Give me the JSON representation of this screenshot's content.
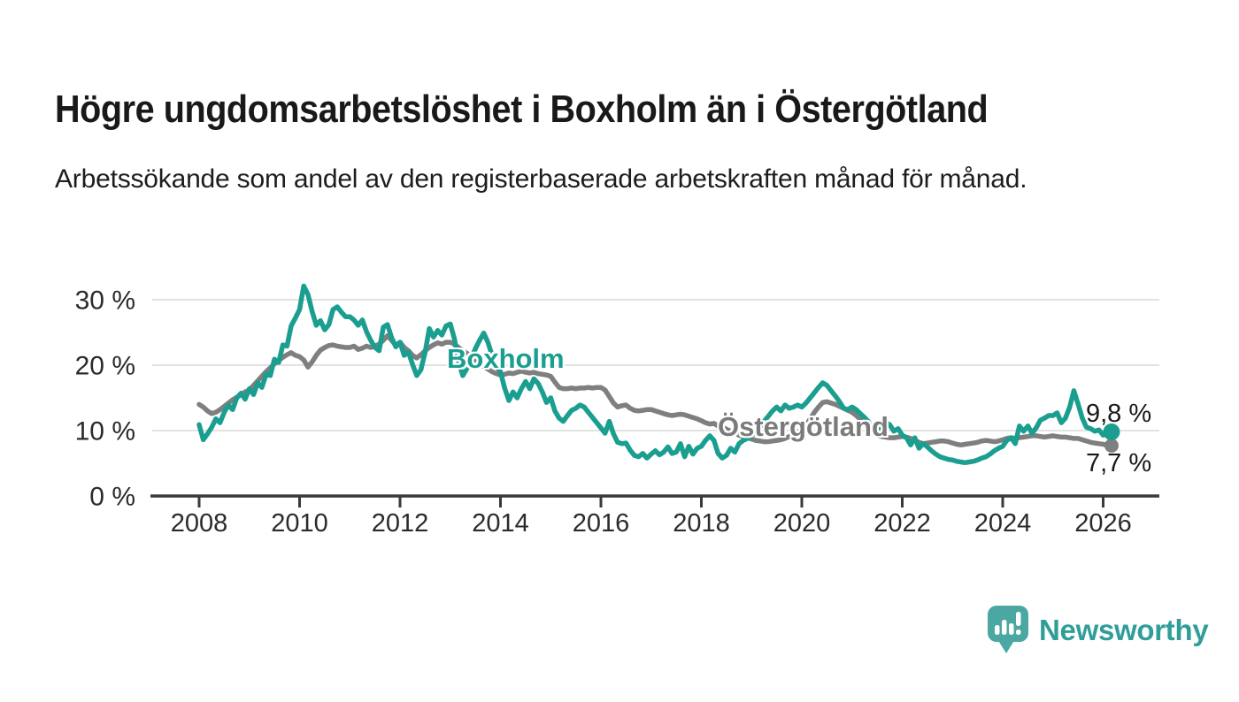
{
  "header": {
    "title": "Högre ungdomsarbetslöshet i Boxholm än i Östergötland",
    "subtitle": "Arbetssökande som andel av den registerbaserade arbetskraften månad för månad."
  },
  "chart_data": {
    "type": "line",
    "frequency": "monthly",
    "x_start": "2008-01",
    "x_end": "2026-03",
    "unit": "%",
    "grid": "horizontal",
    "legend_position": "inline-labels",
    "y_axis": {
      "range": [
        0,
        33
      ],
      "ticks": [
        {
          "value": 0,
          "label": "0 %"
        },
        {
          "value": 10,
          "label": "10 %"
        },
        {
          "value": 20,
          "label": "20 %"
        },
        {
          "value": 30,
          "label": "30 %"
        }
      ]
    },
    "x_axis": {
      "ticks": [
        {
          "year": 2008,
          "label": "2008"
        },
        {
          "year": 2010,
          "label": "2010"
        },
        {
          "year": 2012,
          "label": "2012"
        },
        {
          "year": 2014,
          "label": "2014"
        },
        {
          "year": 2016,
          "label": "2016"
        },
        {
          "year": 2018,
          "label": "2018"
        },
        {
          "year": 2020,
          "label": "2020"
        },
        {
          "year": 2022,
          "label": "2022"
        },
        {
          "year": 2024,
          "label": "2024"
        },
        {
          "year": 2026,
          "label": "2026"
        }
      ]
    },
    "series": [
      {
        "name": "Boxholm",
        "color": "#1a9e90",
        "end_value": 9.8,
        "end_label": "9,8 %",
        "values": [
          10.9,
          8.6,
          9.5,
          10.5,
          11.8,
          11.2,
          12.8,
          13.9,
          13.2,
          15.0,
          15.7,
          14.8,
          16.4,
          15.5,
          17.3,
          16.6,
          18.6,
          18.4,
          20.9,
          20.4,
          23.1,
          22.9,
          26.0,
          27.2,
          28.5,
          32.1,
          30.8,
          28.2,
          26.1,
          26.8,
          25.4,
          26.2,
          28.5,
          28.9,
          28.1,
          27.4,
          27.4,
          26.9,
          26.1,
          26.9,
          25.1,
          23.8,
          22.7,
          22.2,
          25.8,
          26.2,
          24.2,
          22.8,
          23.5,
          21.5,
          22.0,
          20.1,
          18.4,
          19.3,
          22.0,
          25.6,
          24.3,
          25.3,
          24.6,
          26.0,
          26.3,
          24.0,
          20.5,
          18.4,
          19.5,
          21.0,
          22.5,
          23.8,
          24.9,
          23.5,
          21.5,
          19.8,
          19.0,
          16.5,
          14.6,
          15.9,
          15.0,
          16.4,
          17.5,
          16.4,
          17.9,
          17.2,
          15.9,
          14.3,
          15.0,
          13.0,
          11.9,
          11.4,
          12.3,
          13.1,
          13.4,
          13.9,
          13.6,
          12.8,
          12.0,
          11.2,
          10.4,
          9.6,
          11.4,
          9.5,
          8.2,
          8.0,
          8.1,
          7.0,
          6.2,
          6.0,
          6.5,
          5.8,
          6.4,
          6.9,
          6.3,
          6.7,
          7.5,
          6.5,
          6.7,
          8.0,
          6.0,
          7.6,
          6.4,
          7.3,
          7.6,
          8.5,
          9.2,
          8.5,
          6.5,
          5.8,
          6.2,
          7.3,
          6.7,
          8.0,
          8.5,
          8.8,
          9.2,
          9.8,
          10.6,
          11.4,
          12.2,
          13.0,
          13.6,
          13.0,
          13.9,
          13.4,
          13.6,
          13.9,
          13.6,
          14.2,
          15.0,
          15.8,
          16.6,
          17.3,
          16.9,
          16.1,
          15.3,
          14.4,
          13.4,
          13.2,
          13.6,
          13.2,
          12.6,
          12.0,
          11.3,
          9.6,
          10.7,
          9.9,
          11.2,
          10.9,
          9.9,
          10.3,
          9.3,
          8.9,
          7.8,
          8.9,
          7.3,
          8.0,
          7.5,
          6.9,
          6.4,
          6.0,
          5.8,
          5.6,
          5.5,
          5.3,
          5.2,
          5.1,
          5.2,
          5.3,
          5.5,
          5.8,
          6.0,
          6.4,
          6.9,
          7.3,
          7.6,
          8.5,
          8.9,
          8.0,
          10.7,
          9.9,
          10.7,
          9.6,
          10.4,
          11.6,
          11.9,
          12.3,
          12.3,
          12.7,
          11.2,
          11.9,
          13.6,
          16.1,
          14.1,
          11.9,
          10.5,
          10.3,
          9.9,
          10.1,
          9.3,
          9.9,
          9.8
        ]
      },
      {
        "name": "Östergötland",
        "color": "#7f7f7f",
        "end_value": 7.7,
        "end_label": "7,7 %",
        "values": [
          14.0,
          13.6,
          13.0,
          12.6,
          12.8,
          13.2,
          13.7,
          14.2,
          14.7,
          15.1,
          15.5,
          15.9,
          16.2,
          16.9,
          17.6,
          18.3,
          19.0,
          19.6,
          20.2,
          20.7,
          21.2,
          21.6,
          21.9,
          21.5,
          21.3,
          20.8,
          19.7,
          20.5,
          21.5,
          22.3,
          22.7,
          23.0,
          23.1,
          22.9,
          22.8,
          22.7,
          22.7,
          22.9,
          22.4,
          22.6,
          22.9,
          22.7,
          22.9,
          23.2,
          23.8,
          24.5,
          23.8,
          23.0,
          23.5,
          22.7,
          22.2,
          21.5,
          21.1,
          21.6,
          22.2,
          22.7,
          23.1,
          23.4,
          23.2,
          23.5,
          23.5,
          23.2,
          22.7,
          22.2,
          21.8,
          21.3,
          20.8,
          20.3,
          19.8,
          19.4,
          19.0,
          18.7,
          18.5,
          18.6,
          18.8,
          18.7,
          18.9,
          19.1,
          18.9,
          18.8,
          18.9,
          18.7,
          18.6,
          18.5,
          18.3,
          17.4,
          16.6,
          16.4,
          16.4,
          16.5,
          16.4,
          16.5,
          16.5,
          16.6,
          16.5,
          16.6,
          16.6,
          16.2,
          15.2,
          14.2,
          13.6,
          13.8,
          13.9,
          13.4,
          13.1,
          13.0,
          13.1,
          13.2,
          13.2,
          13.0,
          12.8,
          12.6,
          12.4,
          12.3,
          12.4,
          12.5,
          12.4,
          12.2,
          12.0,
          11.8,
          11.5,
          11.2,
          11.0,
          11.1,
          10.7,
          10.5,
          10.2,
          9.9,
          9.6,
          9.3,
          9.1,
          8.9,
          8.7,
          8.5,
          8.4,
          8.3,
          8.3,
          8.4,
          8.5,
          8.6,
          8.8,
          9.1,
          9.4,
          9.8,
          10.0,
          10.8,
          11.8,
          12.8,
          13.6,
          14.3,
          14.4,
          14.2,
          14.0,
          13.7,
          13.4,
          13.1,
          12.8,
          12.3,
          11.7,
          11.0,
          10.3,
          9.7,
          9.3,
          9.1,
          9.0,
          8.9,
          8.9,
          9.0,
          9.1,
          9.0,
          8.8,
          8.5,
          8.2,
          8.0,
          8.1,
          8.2,
          8.3,
          8.4,
          8.4,
          8.3,
          8.1,
          7.9,
          7.8,
          7.9,
          8.0,
          8.1,
          8.2,
          8.4,
          8.5,
          8.4,
          8.3,
          8.4,
          8.6,
          8.8,
          8.9,
          8.8,
          8.9,
          9.0,
          9.1,
          9.2,
          9.2,
          9.1,
          9.0,
          9.1,
          9.2,
          9.1,
          9.0,
          9.0,
          8.9,
          8.8,
          8.8,
          8.6,
          8.4,
          8.2,
          8.1,
          8.0,
          7.9,
          7.8,
          7.7
        ]
      }
    ]
  },
  "colors": {
    "background": "#ffffff",
    "boxholm_teal": "#1a9e90",
    "ostergotland_gray": "#7f7f7f",
    "gridline": "#d9d9d9",
    "axis": "#3a3a3a",
    "axis_text": "#2b2b2b",
    "text_dark": "#191919",
    "brand_teal": "#2f9e99",
    "logo_bubble_teal": "#4aa7a1"
  },
  "footer": {
    "brand": "Newsworthy",
    "logo_icon": "newsworthy-speech-bubble-bar-chart-icon"
  }
}
